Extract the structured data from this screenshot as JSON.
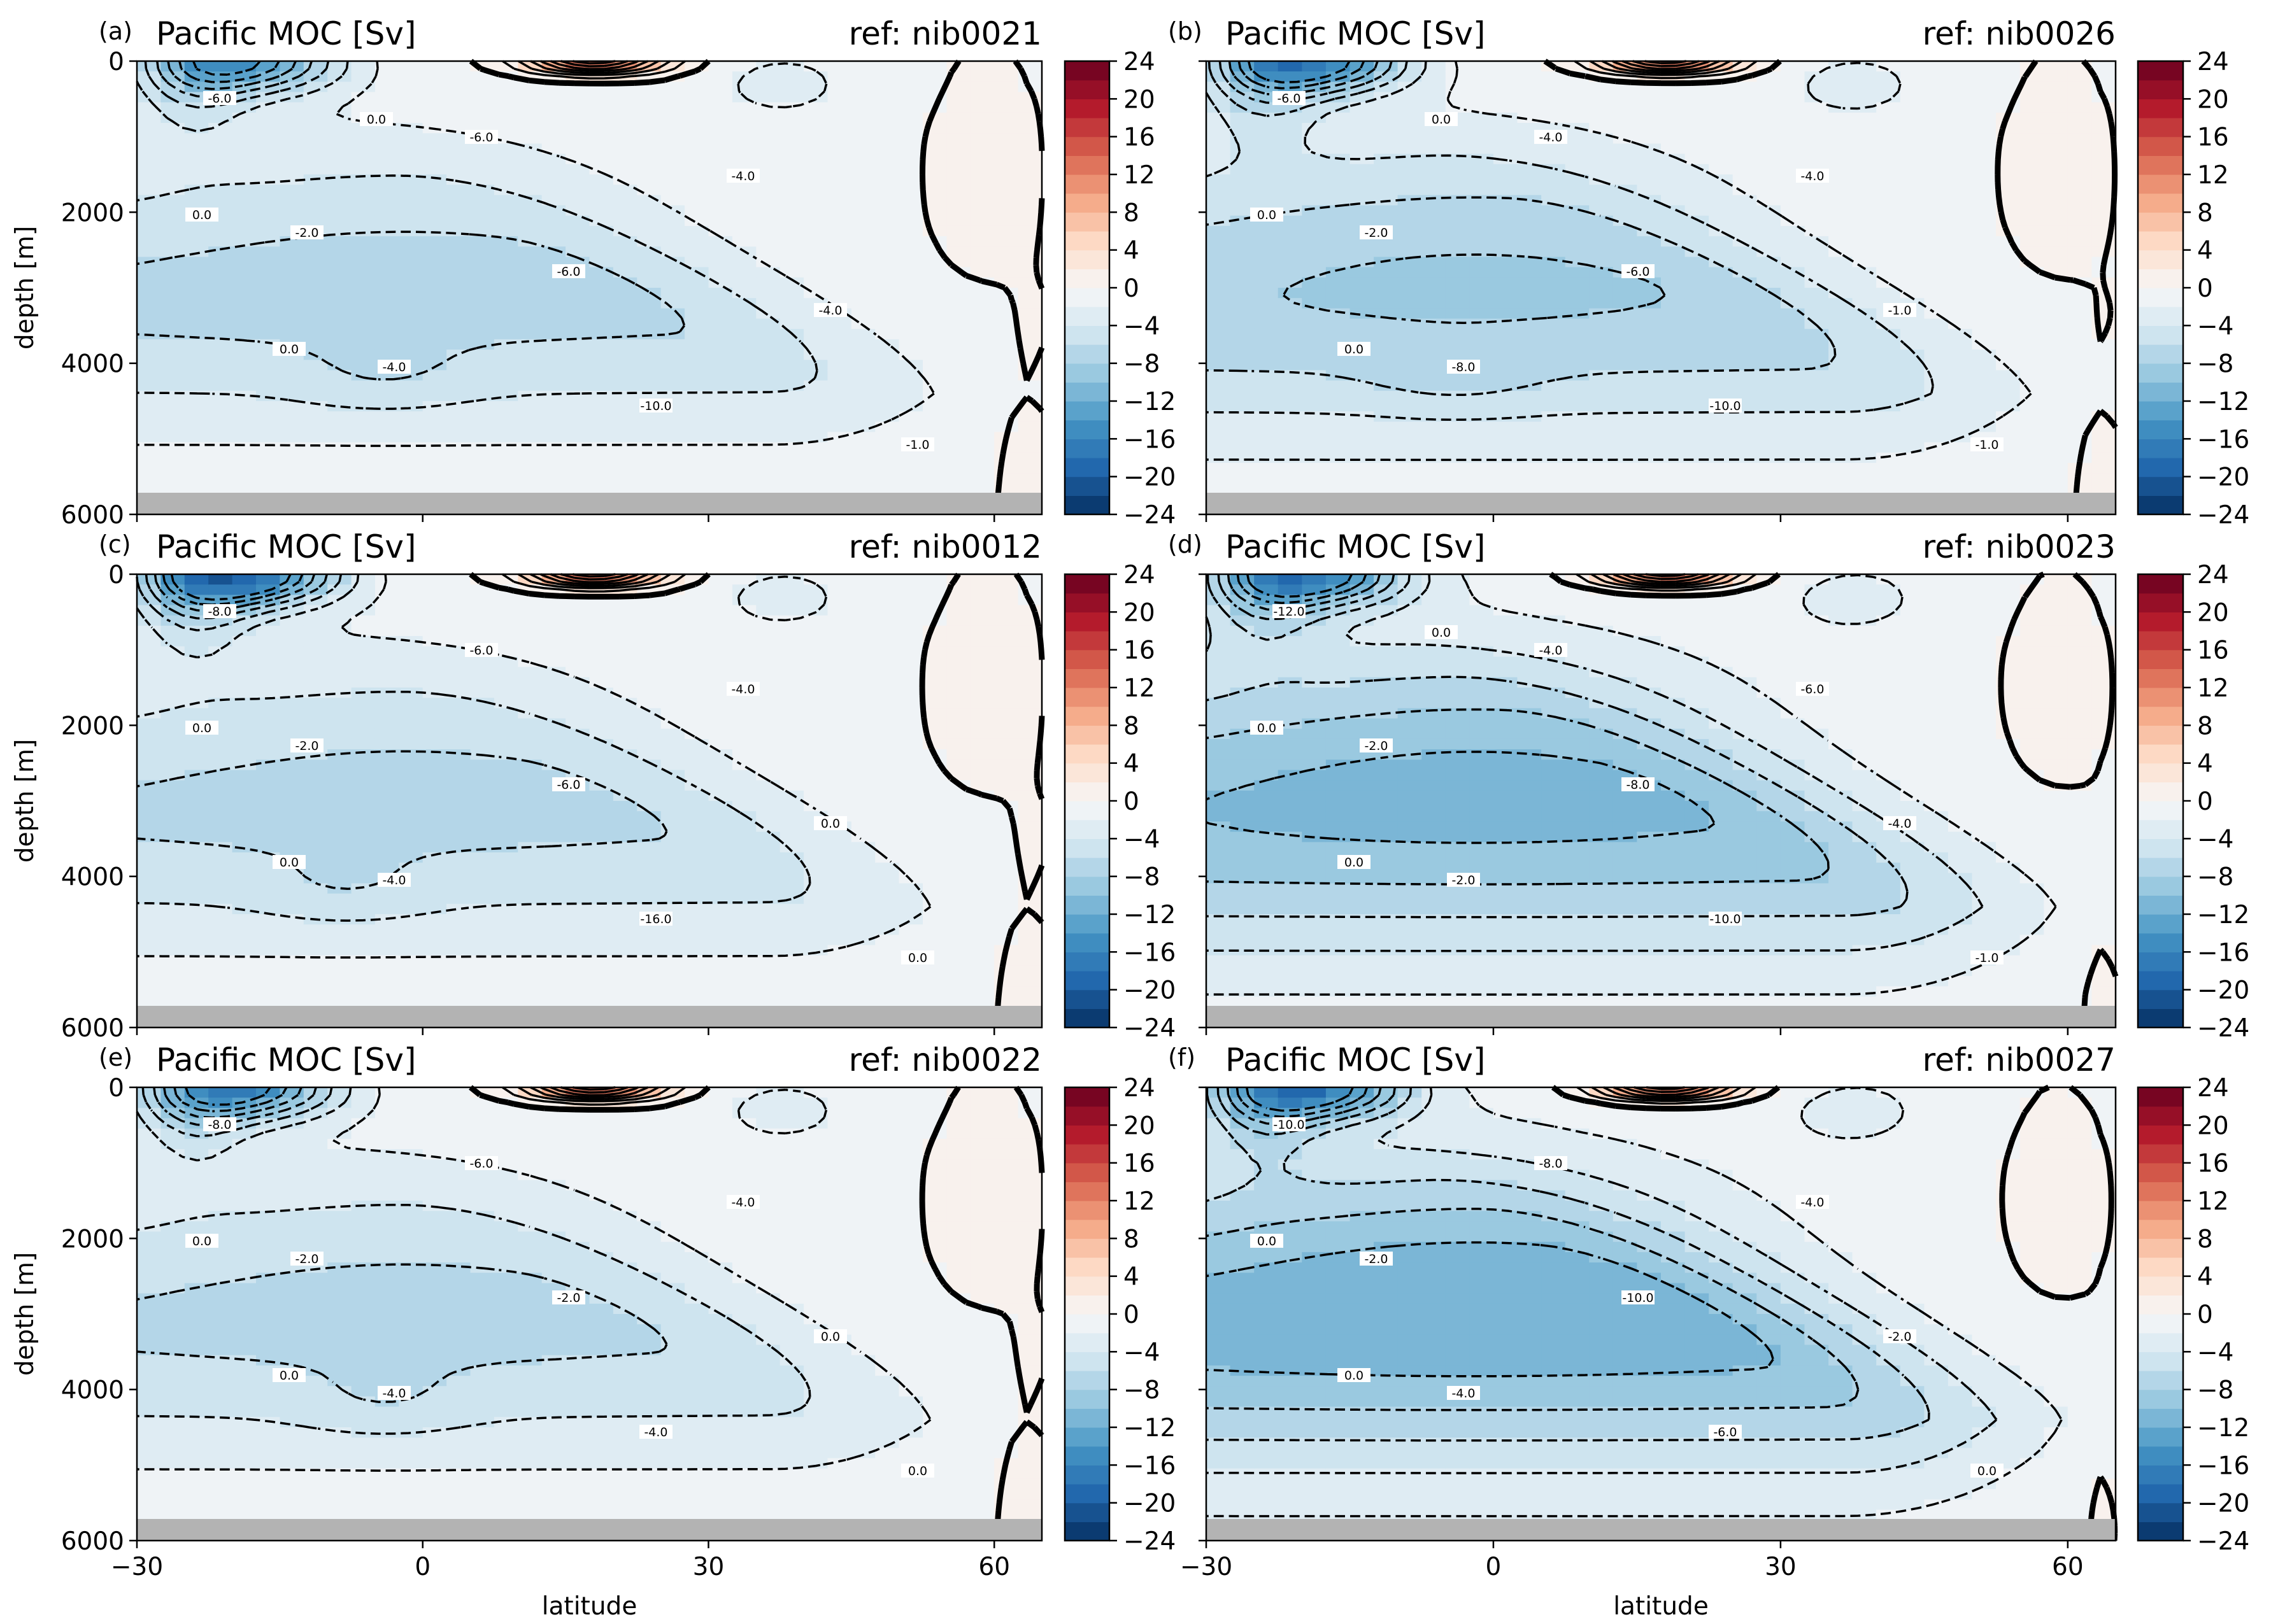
{
  "colors": {
    "colormap": "RdBu_r",
    "zero_contour": "#000000",
    "ocean_floor": "#b3b3b3"
  },
  "chart_data": [
    {
      "type": "heatmap",
      "panel": "(a)",
      "title": "Pacific MOC [Sv]",
      "ref": "ref: nib0021",
      "xlabel": "",
      "ylabel": "depth [m]",
      "xlim": [
        -30,
        65
      ],
      "ylim": [
        6000,
        0
      ],
      "xticks": [
        "−30",
        "0",
        "30",
        "60"
      ],
      "show_xticklabels": false,
      "yticks": [
        "0",
        "2000",
        "4000",
        "6000"
      ],
      "show_yticklabels": true,
      "colorbar": {
        "ticks": [
          "24",
          "20",
          "16",
          "12",
          "8",
          "4",
          "0",
          "−4",
          "−8",
          "−12",
          "−16",
          "−20",
          "−24"
        ],
        "range": [
          -24,
          24
        ],
        "step": 2
      },
      "contour_labels": [
        "-6.0",
        "-2.0",
        "-4.0",
        "-6.0",
        "-6.0",
        "-10.0",
        "-4.0",
        "-4.0",
        "-1.0",
        "0.0",
        "0.0",
        "0.0"
      ],
      "field": {
        "deep_min": -7,
        "has_bottom_core": true,
        "bottom_core_lat": -4,
        "overturn_peak": -12,
        "wedge_strength": 1.0
      }
    },
    {
      "type": "heatmap",
      "panel": "(b)",
      "title": "Pacific MOC [Sv]",
      "ref": "ref: nib0026",
      "xlabel": "",
      "ylabel": "",
      "xlim": [
        -30,
        65
      ],
      "ylim": [
        6000,
        0
      ],
      "xticks": [
        "−30",
        "0",
        "30",
        "60"
      ],
      "show_xticklabels": false,
      "yticks": [
        "0",
        "2000",
        "4000",
        "6000"
      ],
      "show_yticklabels": false,
      "colorbar": {
        "ticks": [
          "24",
          "20",
          "16",
          "12",
          "8",
          "4",
          "0",
          "−4",
          "−8",
          "−12",
          "−16",
          "−20",
          "−24"
        ],
        "range": [
          -24,
          24
        ],
        "step": 2
      },
      "contour_labels": [
        "-6.0",
        "-2.0",
        "-8.0",
        "-4.0",
        "-6.0",
        "-10.0",
        "-4.0",
        "-1.0",
        "-1.0",
        "0.0",
        "0.0",
        "0.0"
      ],
      "field": {
        "deep_min": -8.5,
        "has_bottom_core": true,
        "bottom_core_lat": -4,
        "overturn_peak": -14,
        "wedge_strength": 1.2
      }
    },
    {
      "type": "heatmap",
      "panel": "(c)",
      "title": "Pacific MOC [Sv]",
      "ref": "ref: nib0012",
      "xlabel": "",
      "ylabel": "depth [m]",
      "xlim": [
        -30,
        65
      ],
      "ylim": [
        6000,
        0
      ],
      "xticks": [
        "−30",
        "0",
        "30",
        "60"
      ],
      "show_xticklabels": false,
      "yticks": [
        "0",
        "2000",
        "4000",
        "6000"
      ],
      "show_yticklabels": true,
      "colorbar": {
        "ticks": [
          "24",
          "20",
          "16",
          "12",
          "8",
          "4",
          "0",
          "−4",
          "−8",
          "−12",
          "−16",
          "−20",
          "−24"
        ],
        "range": [
          -24,
          24
        ],
        "step": 2
      },
      "contour_labels": [
        "-8.0",
        "-2.0",
        "-4.0",
        "-6.0",
        "-6.0",
        "-16.0",
        "-4.0",
        "0.0",
        "0.0",
        "0.0",
        "0.0"
      ],
      "field": {
        "deep_min": -6.8,
        "has_bottom_core": true,
        "bottom_core_lat": -8,
        "overturn_peak": -16,
        "wedge_strength": 1.0
      }
    },
    {
      "type": "heatmap",
      "panel": "(d)",
      "title": "Pacific MOC [Sv]",
      "ref": "ref: nib0023",
      "xlabel": "",
      "ylabel": "",
      "xlim": [
        -30,
        65
      ],
      "ylim": [
        6000,
        0
      ],
      "xticks": [
        "−30",
        "0",
        "30",
        "60"
      ],
      "show_xticklabels": false,
      "yticks": [
        "0",
        "2000",
        "4000",
        "6000"
      ],
      "show_yticklabels": false,
      "colorbar": {
        "ticks": [
          "24",
          "20",
          "16",
          "12",
          "8",
          "4",
          "0",
          "−4",
          "−8",
          "−12",
          "−16",
          "−20",
          "−24"
        ],
        "range": [
          -24,
          24
        ],
        "step": 2
      },
      "contour_labels": [
        "-12.0",
        "-2.0",
        "-2.0",
        "-4.0",
        "-8.0",
        "-10.0",
        "-6.0",
        "-4.0",
        "-1.0",
        "0.0",
        "0.0",
        "0.0"
      ],
      "field": {
        "deep_min": -11,
        "has_bottom_core": false,
        "bottom_core_lat": 0,
        "overturn_peak": -14,
        "wedge_strength": 1.6
      }
    },
    {
      "type": "heatmap",
      "panel": "(e)",
      "title": "Pacific MOC [Sv]",
      "ref": "ref: nib0022",
      "xlabel": "latitude",
      "ylabel": "depth [m]",
      "xlim": [
        -30,
        65
      ],
      "ylim": [
        6000,
        0
      ],
      "xticks": [
        "−30",
        "0",
        "30",
        "60"
      ],
      "show_xticklabels": true,
      "yticks": [
        "0",
        "2000",
        "4000",
        "6000"
      ],
      "show_yticklabels": true,
      "colorbar": {
        "ticks": [
          "24",
          "20",
          "16",
          "12",
          "8",
          "4",
          "0",
          "−4",
          "−8",
          "−12",
          "−16",
          "−20",
          "−24"
        ],
        "range": [
          -24,
          24
        ],
        "step": 2
      },
      "contour_labels": [
        "-8.0",
        "-2.0",
        "-4.0",
        "-6.0",
        "-2.0",
        "-4.0",
        "-4.0",
        "0.0",
        "0.0",
        "0.0",
        "0.0"
      ],
      "field": {
        "deep_min": -6.8,
        "has_bottom_core": true,
        "bottom_core_lat": -4,
        "overturn_peak": -13,
        "wedge_strength": 1.0
      }
    },
    {
      "type": "heatmap",
      "panel": "(f)",
      "title": "Pacific MOC [Sv]",
      "ref": "ref: nib0027",
      "xlabel": "latitude",
      "ylabel": "",
      "xlim": [
        -30,
        65
      ],
      "ylim": [
        6000,
        0
      ],
      "xticks": [
        "−30",
        "0",
        "30",
        "60"
      ],
      "show_xticklabels": true,
      "yticks": [
        "0",
        "2000",
        "4000",
        "6000"
      ],
      "show_yticklabels": false,
      "colorbar": {
        "ticks": [
          "24",
          "20",
          "16",
          "12",
          "8",
          "4",
          "0",
          "−4",
          "−8",
          "−12",
          "−16",
          "−20",
          "−24"
        ],
        "range": [
          -24,
          24
        ],
        "step": 2
      },
      "contour_labels": [
        "-10.0",
        "-2.0",
        "-4.0",
        "-8.0",
        "-10.0",
        "-6.0",
        "-4.0",
        "-2.0",
        "0.0",
        "0.0",
        "0.0"
      ],
      "field": {
        "deep_min": -12,
        "has_bottom_core": false,
        "bottom_core_lat": 0,
        "overturn_peak": -14,
        "wedge_strength": 1.8
      }
    }
  ]
}
